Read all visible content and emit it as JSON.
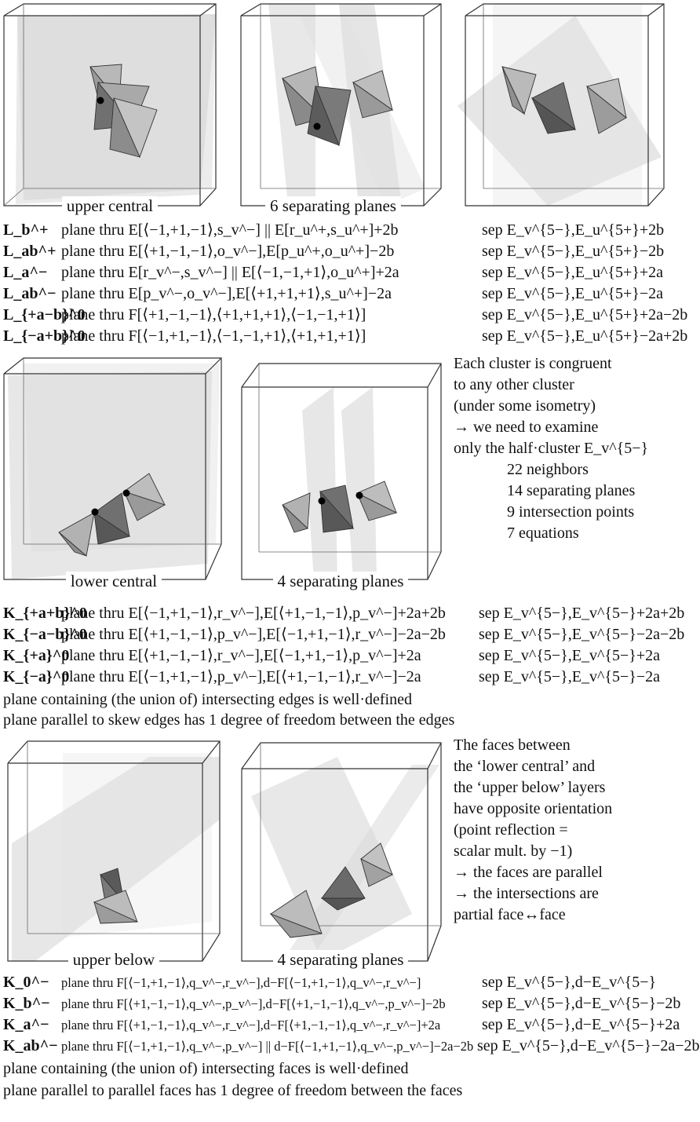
{
  "figures": {
    "top": [
      "upper central",
      "6 separating planes",
      ""
    ],
    "middle": [
      "lower central",
      "4 separating planes"
    ],
    "bottom": [
      "upper below",
      "4 separating planes"
    ]
  },
  "L_rows": [
    {
      "sym": "L_b^+",
      "desc": "plane thru E[⟨−1,+1,−1⟩,s_v^−] || E[r_u^+,s_u^+]+2b",
      "sep": "sep E_v^{5−},E_u^{5+}+2b"
    },
    {
      "sym": "L_ab^+",
      "desc": "plane thru E[⟨+1,−1,−1⟩,o_v^−],E[p_u^+,o_u^+]−2b",
      "sep": "sep E_v^{5−},E_u^{5+}−2b"
    },
    {
      "sym": "L_a^−",
      "desc": "plane thru E[r_v^−,s_v^−] || E[⟨−1,−1,+1⟩,o_u^+]+2a",
      "sep": "sep E_v^{5−},E_u^{5+}+2a"
    },
    {
      "sym": "L_ab^−",
      "desc": "plane thru E[p_v^−,o_v^−],E[⟨+1,+1,+1⟩,s_u^+]−2a",
      "sep": "sep E_v^{5−},E_u^{5+}−2a"
    },
    {
      "sym": "L_{+a−b}^0",
      "desc": "plane thru F[⟨+1,−1,−1⟩,⟨+1,+1,+1⟩,⟨−1,−1,+1⟩]",
      "sep": "sep E_v^{5−},E_u^{5+}+2a−2b"
    },
    {
      "sym": "L_{−a+b}^0",
      "desc": "plane thru F[⟨−1,+1,−1⟩,⟨−1,−1,+1⟩,⟨+1,+1,+1⟩]",
      "sep": "sep E_v^{5−},E_u^{5+}−2a+2b"
    }
  ],
  "cluster_note": {
    "lines": [
      "Each cluster is congruent",
      "to any other cluster",
      "(under some isometry)",
      "→ we need to examine",
      "only the half·cluster E_v^{5−}"
    ],
    "stats": [
      "22 neighbors",
      "14 separating planes",
      "9 intersection points",
      "7 equations"
    ]
  },
  "K0_rows": [
    {
      "sym": "K_{+a+b}^0",
      "desc": "plane thru E[⟨−1,+1,−1⟩,r_v^−],E[⟨+1,−1,−1⟩,p_v^−]+2a+2b",
      "sep": "sep E_v^{5−},E_v^{5−}+2a+2b"
    },
    {
      "sym": "K_{−a−b}^0",
      "desc": "plane thru E[⟨+1,−1,−1⟩,p_v^−],E[⟨−1,+1,−1⟩,r_v^−]−2a−2b",
      "sep": "sep E_v^{5−},E_v^{5−}−2a−2b"
    },
    {
      "sym": "K_{+a}^0",
      "desc": "plane thru E[⟨+1,−1,−1⟩,r_v^−],E[⟨−1,+1,−1⟩,p_v^−]+2a",
      "sep": "sep E_v^{5−},E_v^{5−}+2a"
    },
    {
      "sym": "K_{−a}^0",
      "desc": "plane thru E[⟨−1,+1,−1⟩,p_v^−],E[⟨+1,−1,−1⟩,r_v^−]−2a",
      "sep": "sep E_v^{5−},E_v^{5−}−2a"
    }
  ],
  "edge_notes": [
    "plane containing (the union of) intersecting edges is well·defined",
    "plane parallel to skew edges has 1 degree of freedom between the edges"
  ],
  "face_note": [
    "The faces between",
    "the ‘lower central’ and",
    "the ‘upper below’ layers",
    "have opposite orientation",
    "(point reflection =",
    "scalar mult. by −1)",
    "→ the faces are parallel",
    "→ the intersections are",
    "partial face↔face"
  ],
  "K_rows": [
    {
      "sym": "K_0^−",
      "desc": "plane thru F[⟨−1,+1,−1⟩,q_v^−,r_v^−],d−F[⟨−1,+1,−1⟩,q_v^−,r_v^−]",
      "sep": "sep E_v^{5−},d−E_v^{5−}"
    },
    {
      "sym": "K_b^−",
      "desc": "plane thru F[⟨+1,−1,−1⟩,q_v^−,p_v^−],d−F[⟨+1,−1,−1⟩,q_v^−,p_v^−]−2b",
      "sep": "sep E_v^{5−},d−E_v^{5−}−2b"
    },
    {
      "sym": "K_a^−",
      "desc": "plane thru F[⟨+1,−1,−1⟩,q_v^−,r_v^−],d−F[⟨+1,−1,−1⟩,q_v^−,r_v^−]+2a",
      "sep": "sep E_v^{5−},d−E_v^{5−}+2a"
    },
    {
      "sym": "K_ab^−",
      "desc": "plane thru F[⟨−1,+1,−1⟩,q_v^−,p_v^−] || d−F[⟨−1,+1,−1⟩,q_v^−,p_v^−]−2a−2b",
      "sep": "sep E_v^{5−},d−E_v^{5−}−2a−2b"
    }
  ],
  "face_notes": [
    "plane containing (the union of) intersecting faces is well·defined",
    "plane parallel to parallel faces has 1 degree of freedom between the faces"
  ]
}
